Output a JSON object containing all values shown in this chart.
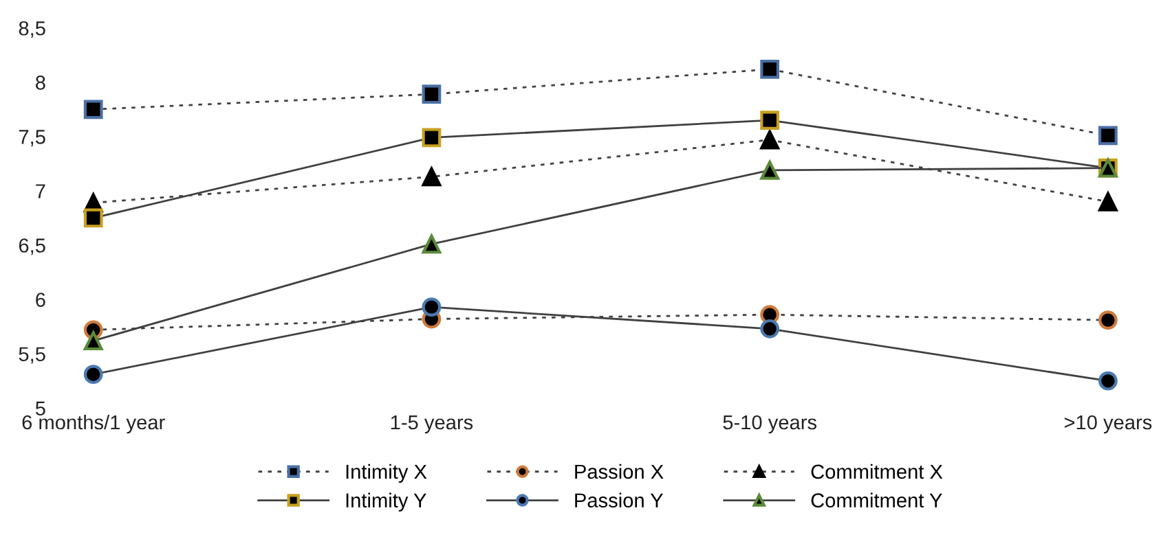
{
  "chart_data": {
    "type": "line",
    "categories": [
      "6 months/1 year",
      "1-5 years",
      "5-10 years",
      ">10 years"
    ],
    "ylim": [
      5,
      8.5
    ],
    "yticks": [
      5,
      {
        "value": 5.5,
        "label": "5,5"
      },
      6,
      {
        "value": 6.5,
        "label": "6,5"
      },
      7,
      {
        "value": 7.5,
        "label": "7,5"
      },
      8,
      {
        "value": 8.5,
        "label": "8,5"
      }
    ],
    "grid": false,
    "legend": "bottom",
    "series": [
      {
        "name": "Intimity X",
        "color": "#4a6fa5",
        "marker": "square",
        "line_style": "dotted",
        "values": [
          7.75,
          7.89,
          8.12,
          7.51
        ]
      },
      {
        "name": "Passion X",
        "color": "#d07a3a",
        "marker": "circle",
        "line_style": "dotted",
        "values": [
          5.72,
          5.82,
          5.86,
          5.81
        ]
      },
      {
        "name": "Commitment X",
        "color": "#000000",
        "marker": "triangle",
        "line_style": "dotted",
        "values": [
          6.89,
          7.13,
          7.47,
          6.9
        ]
      },
      {
        "name": "Intimity Y",
        "color": "#c8a020",
        "marker": "square",
        "line_style": "solid",
        "values": [
          6.75,
          7.49,
          7.65,
          7.21
        ]
      },
      {
        "name": "Passion Y",
        "color": "#4a7ab0",
        "marker": "circle",
        "line_style": "solid",
        "values": [
          5.31,
          5.93,
          5.73,
          5.25
        ]
      },
      {
        "name": "Commitment Y",
        "color": "#5a8a3a",
        "marker": "triangle",
        "line_style": "solid",
        "values": [
          5.62,
          6.51,
          7.19,
          7.21
        ]
      }
    ]
  }
}
